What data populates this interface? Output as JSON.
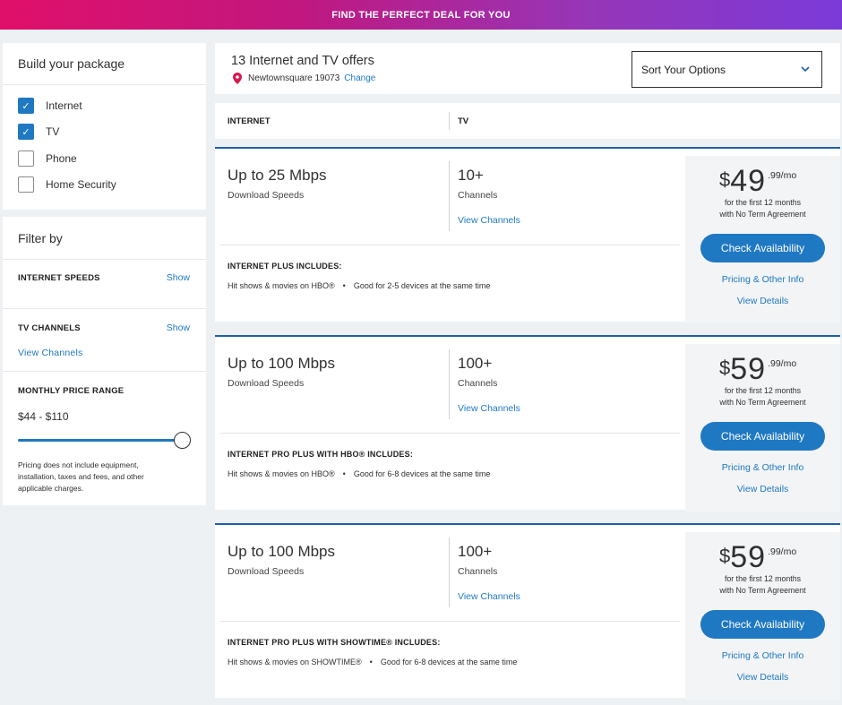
{
  "banner": {
    "text": "FIND THE PERFECT DEAL FOR YOU"
  },
  "build": {
    "title": "Build your package",
    "options": [
      {
        "label": "Internet",
        "checked": true
      },
      {
        "label": "TV",
        "checked": true
      },
      {
        "label": "Phone",
        "checked": false
      },
      {
        "label": "Home Security",
        "checked": false
      }
    ]
  },
  "filter": {
    "title": "Filter by",
    "internet_speeds": {
      "label": "INTERNET SPEEDS",
      "action": "Show"
    },
    "tv_channels": {
      "label": "TV CHANNELS",
      "action": "Show",
      "link": "View Channels"
    },
    "price_range": {
      "label": "MONTHLY PRICE RANGE",
      "value": "$44 - $110",
      "slider_fraction": 1.0,
      "disclaimer": "Pricing does not include equipment, installation, taxes and fees, and other applicable charges."
    }
  },
  "header": {
    "offers_count": "13 Internet and TV offers",
    "location": "Newtownsquare 19073",
    "change_link": "Change",
    "sort_label": "Sort Your Options"
  },
  "columns": {
    "internet": "INTERNET",
    "tv": "TV"
  },
  "offers": [
    {
      "speed": "Up to 25 Mbps",
      "speed_sub": "Download Speeds",
      "channels": "10+",
      "channels_sub": "Channels",
      "view_channels": "View Channels",
      "includes_title": "INTERNET PLUS INCLUDES:",
      "include_1": "Hit shows & movies on HBO®",
      "include_2": "Good for 2-5 devices at the same time",
      "dollar": "$",
      "price_whole": "49",
      "price_cents": ".99/mo",
      "terms_1": "for the first 12 months",
      "terms_2": "with No Term Agreement",
      "cta": "Check Availability",
      "pricing_link": "Pricing & Other Info",
      "details_link": "View Details"
    },
    {
      "speed": "Up to 100 Mbps",
      "speed_sub": "Download Speeds",
      "channels": "100+",
      "channels_sub": "Channels",
      "view_channels": "View Channels",
      "includes_title": "INTERNET PRO PLUS WITH HBO® INCLUDES:",
      "include_1": "Hit shows & movies on HBO®",
      "include_2": "Good for 6-8 devices at the same time",
      "dollar": "$",
      "price_whole": "59",
      "price_cents": ".99/mo",
      "terms_1": "for the first 12 months",
      "terms_2": "with No Term Agreement",
      "cta": "Check Availability",
      "pricing_link": "Pricing & Other Info",
      "details_link": "View Details"
    },
    {
      "speed": "Up to 100 Mbps",
      "speed_sub": "Download Speeds",
      "channels": "100+",
      "channels_sub": "Channels",
      "view_channels": "View Channels",
      "includes_title": "INTERNET PRO PLUS WITH SHOWTIME® INCLUDES:",
      "include_1": "Hit shows & movies on SHOWTIME®",
      "include_2": "Good for 6-8 devices at the same time",
      "dollar": "$",
      "price_whole": "59",
      "price_cents": ".99/mo",
      "terms_1": "for the first 12 months",
      "terms_2": "with No Term Agreement",
      "cta": "Check Availability",
      "pricing_link": "Pricing & Other Info",
      "details_link": "View Details"
    }
  ],
  "colors": {
    "accent": "#1f78c2",
    "card_rule": "#1f5fa8",
    "pin": "#d6184f",
    "banner_start": "#e0106a",
    "banner_end": "#7b3ad8"
  }
}
